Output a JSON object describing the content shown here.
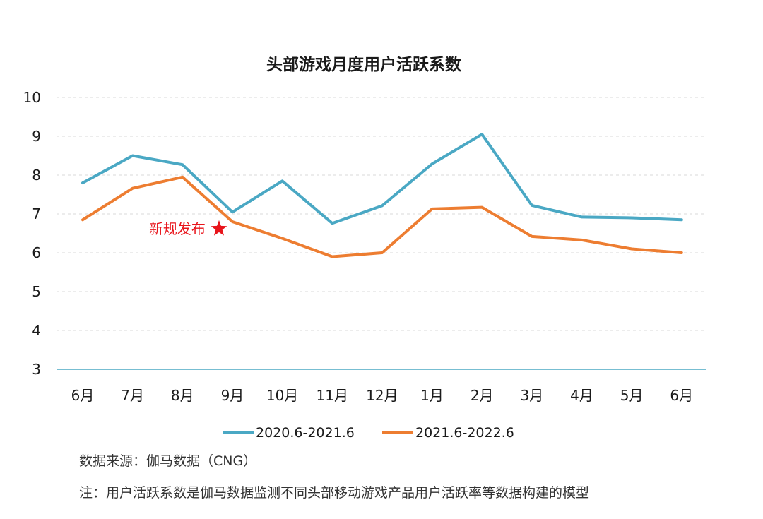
{
  "chart_data": {
    "type": "line",
    "title": "头部游戏月度用户活跃系数",
    "xlabel": "",
    "ylabel": "",
    "categories": [
      "6月",
      "7月",
      "8月",
      "9月",
      "10月",
      "11月",
      "12月",
      "1月",
      "2月",
      "3月",
      "4月",
      "5月",
      "6月"
    ],
    "ylim": [
      3,
      10
    ],
    "yticks": [
      "10",
      "9",
      "8",
      "7",
      "6",
      "5",
      "4",
      "3"
    ],
    "grid": "horizontal dashed",
    "legend_position": "bottom",
    "series": [
      {
        "name": "2020.6-2021.6",
        "color": "#4aa8c4",
        "values": [
          7.8,
          8.5,
          8.27,
          7.05,
          7.85,
          6.76,
          7.21,
          8.29,
          9.05,
          7.22,
          6.92,
          6.9,
          6.85
        ]
      },
      {
        "name": "2021.6-2022.6",
        "color": "#ed7d31",
        "values": [
          6.85,
          7.66,
          7.95,
          6.8,
          6.37,
          5.9,
          6.0,
          7.13,
          7.17,
          6.42,
          6.33,
          6.1,
          6.0
        ]
      }
    ],
    "annotation": {
      "text": "新规发布",
      "marker": "star-icon",
      "color": "#e8141b",
      "at_category": "9月",
      "value": 6.62
    },
    "axis_color": "#4aa8c4",
    "grid_color": "#d9d9d9"
  },
  "notes": {
    "source": "数据来源：伽马数据（CNG）",
    "footnote": "注：用户活跃系数是伽马数据监测不同头部移动游戏产品用户活跃率等数据构建的模型"
  }
}
